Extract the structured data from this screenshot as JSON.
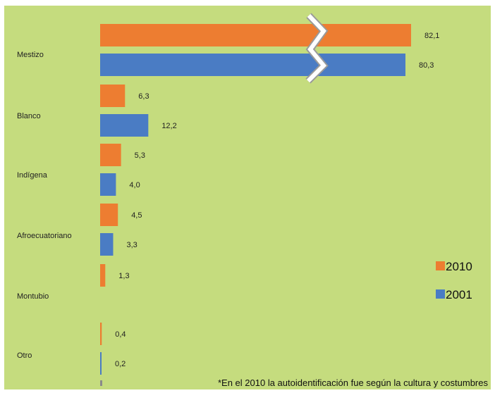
{
  "chart_data": {
    "type": "bar",
    "orientation": "horizontal",
    "categories": [
      "Mestizo",
      "Blanco",
      "Indígena",
      "Afroecuatoriano",
      "Montubio",
      "Otro"
    ],
    "series": [
      {
        "name": "2010",
        "color": "#ed7d31",
        "values": [
          82.1,
          6.3,
          5.3,
          4.5,
          1.3,
          0.4
        ],
        "labels": [
          "82,1",
          "6,3",
          "5,3",
          "4,5",
          "1,3",
          "0,4"
        ]
      },
      {
        "name": "2001",
        "color": "#4a7cc4",
        "values": [
          80.3,
          12.2,
          4.0,
          3.3,
          null,
          0.2
        ],
        "labels": [
          "80,3",
          "12,2",
          "4,0",
          "3,3",
          "",
          "0,2"
        ]
      }
    ],
    "axis_break_on": "Mestizo",
    "legend_position": "right",
    "note": "*En el 2010 la autoidentificación fue según la cultura y costumbres",
    "background_color": "#c5dc7e",
    "grid": false
  }
}
